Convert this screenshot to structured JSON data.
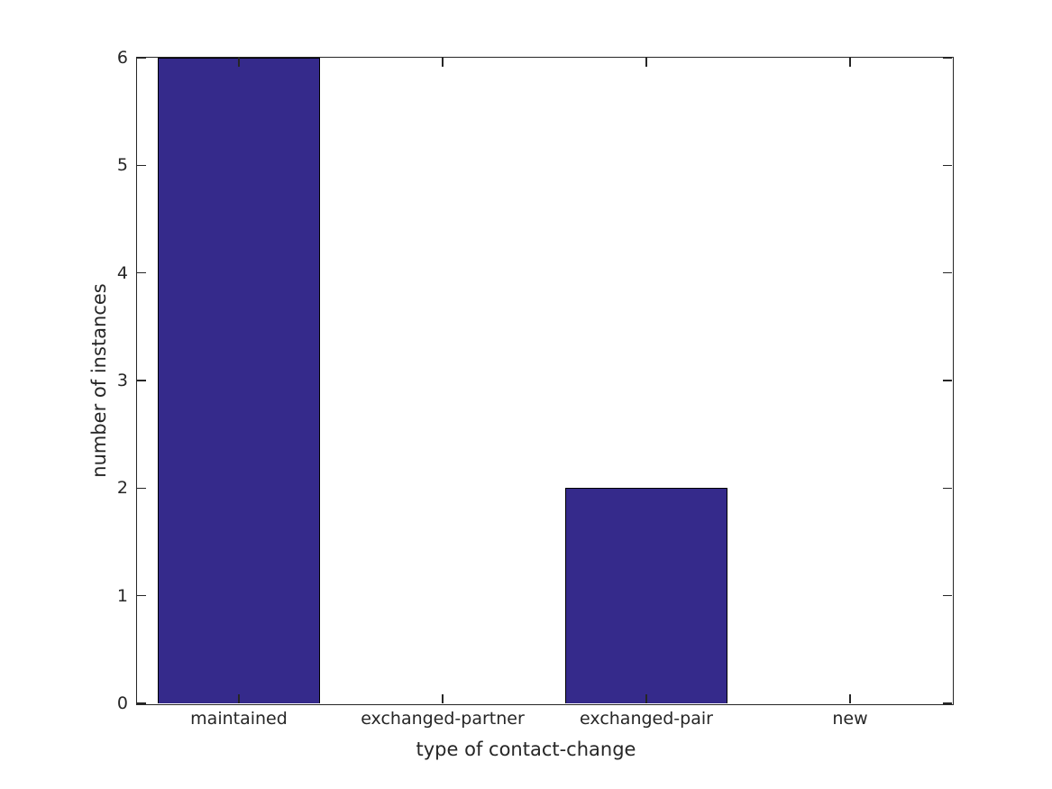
{
  "chart_data": {
    "type": "bar",
    "title": "",
    "categories": [
      "maintained",
      "exchanged-partner",
      "exchanged-pair",
      "new"
    ],
    "values": [
      6,
      0,
      2,
      0
    ],
    "xlabel": "type of contact-change",
    "ylabel": "number of instances",
    "ylim": [
      0,
      6
    ],
    "yticks": [
      0,
      1,
      2,
      3,
      4,
      5,
      6
    ],
    "bar_width_fraction": 0.8,
    "grid": false,
    "legend": null,
    "colors": {
      "bar_fill": "#352A8B",
      "bar_edge": "#000000",
      "axis": "#262626",
      "text": "#262626",
      "background": "#ffffff"
    }
  }
}
